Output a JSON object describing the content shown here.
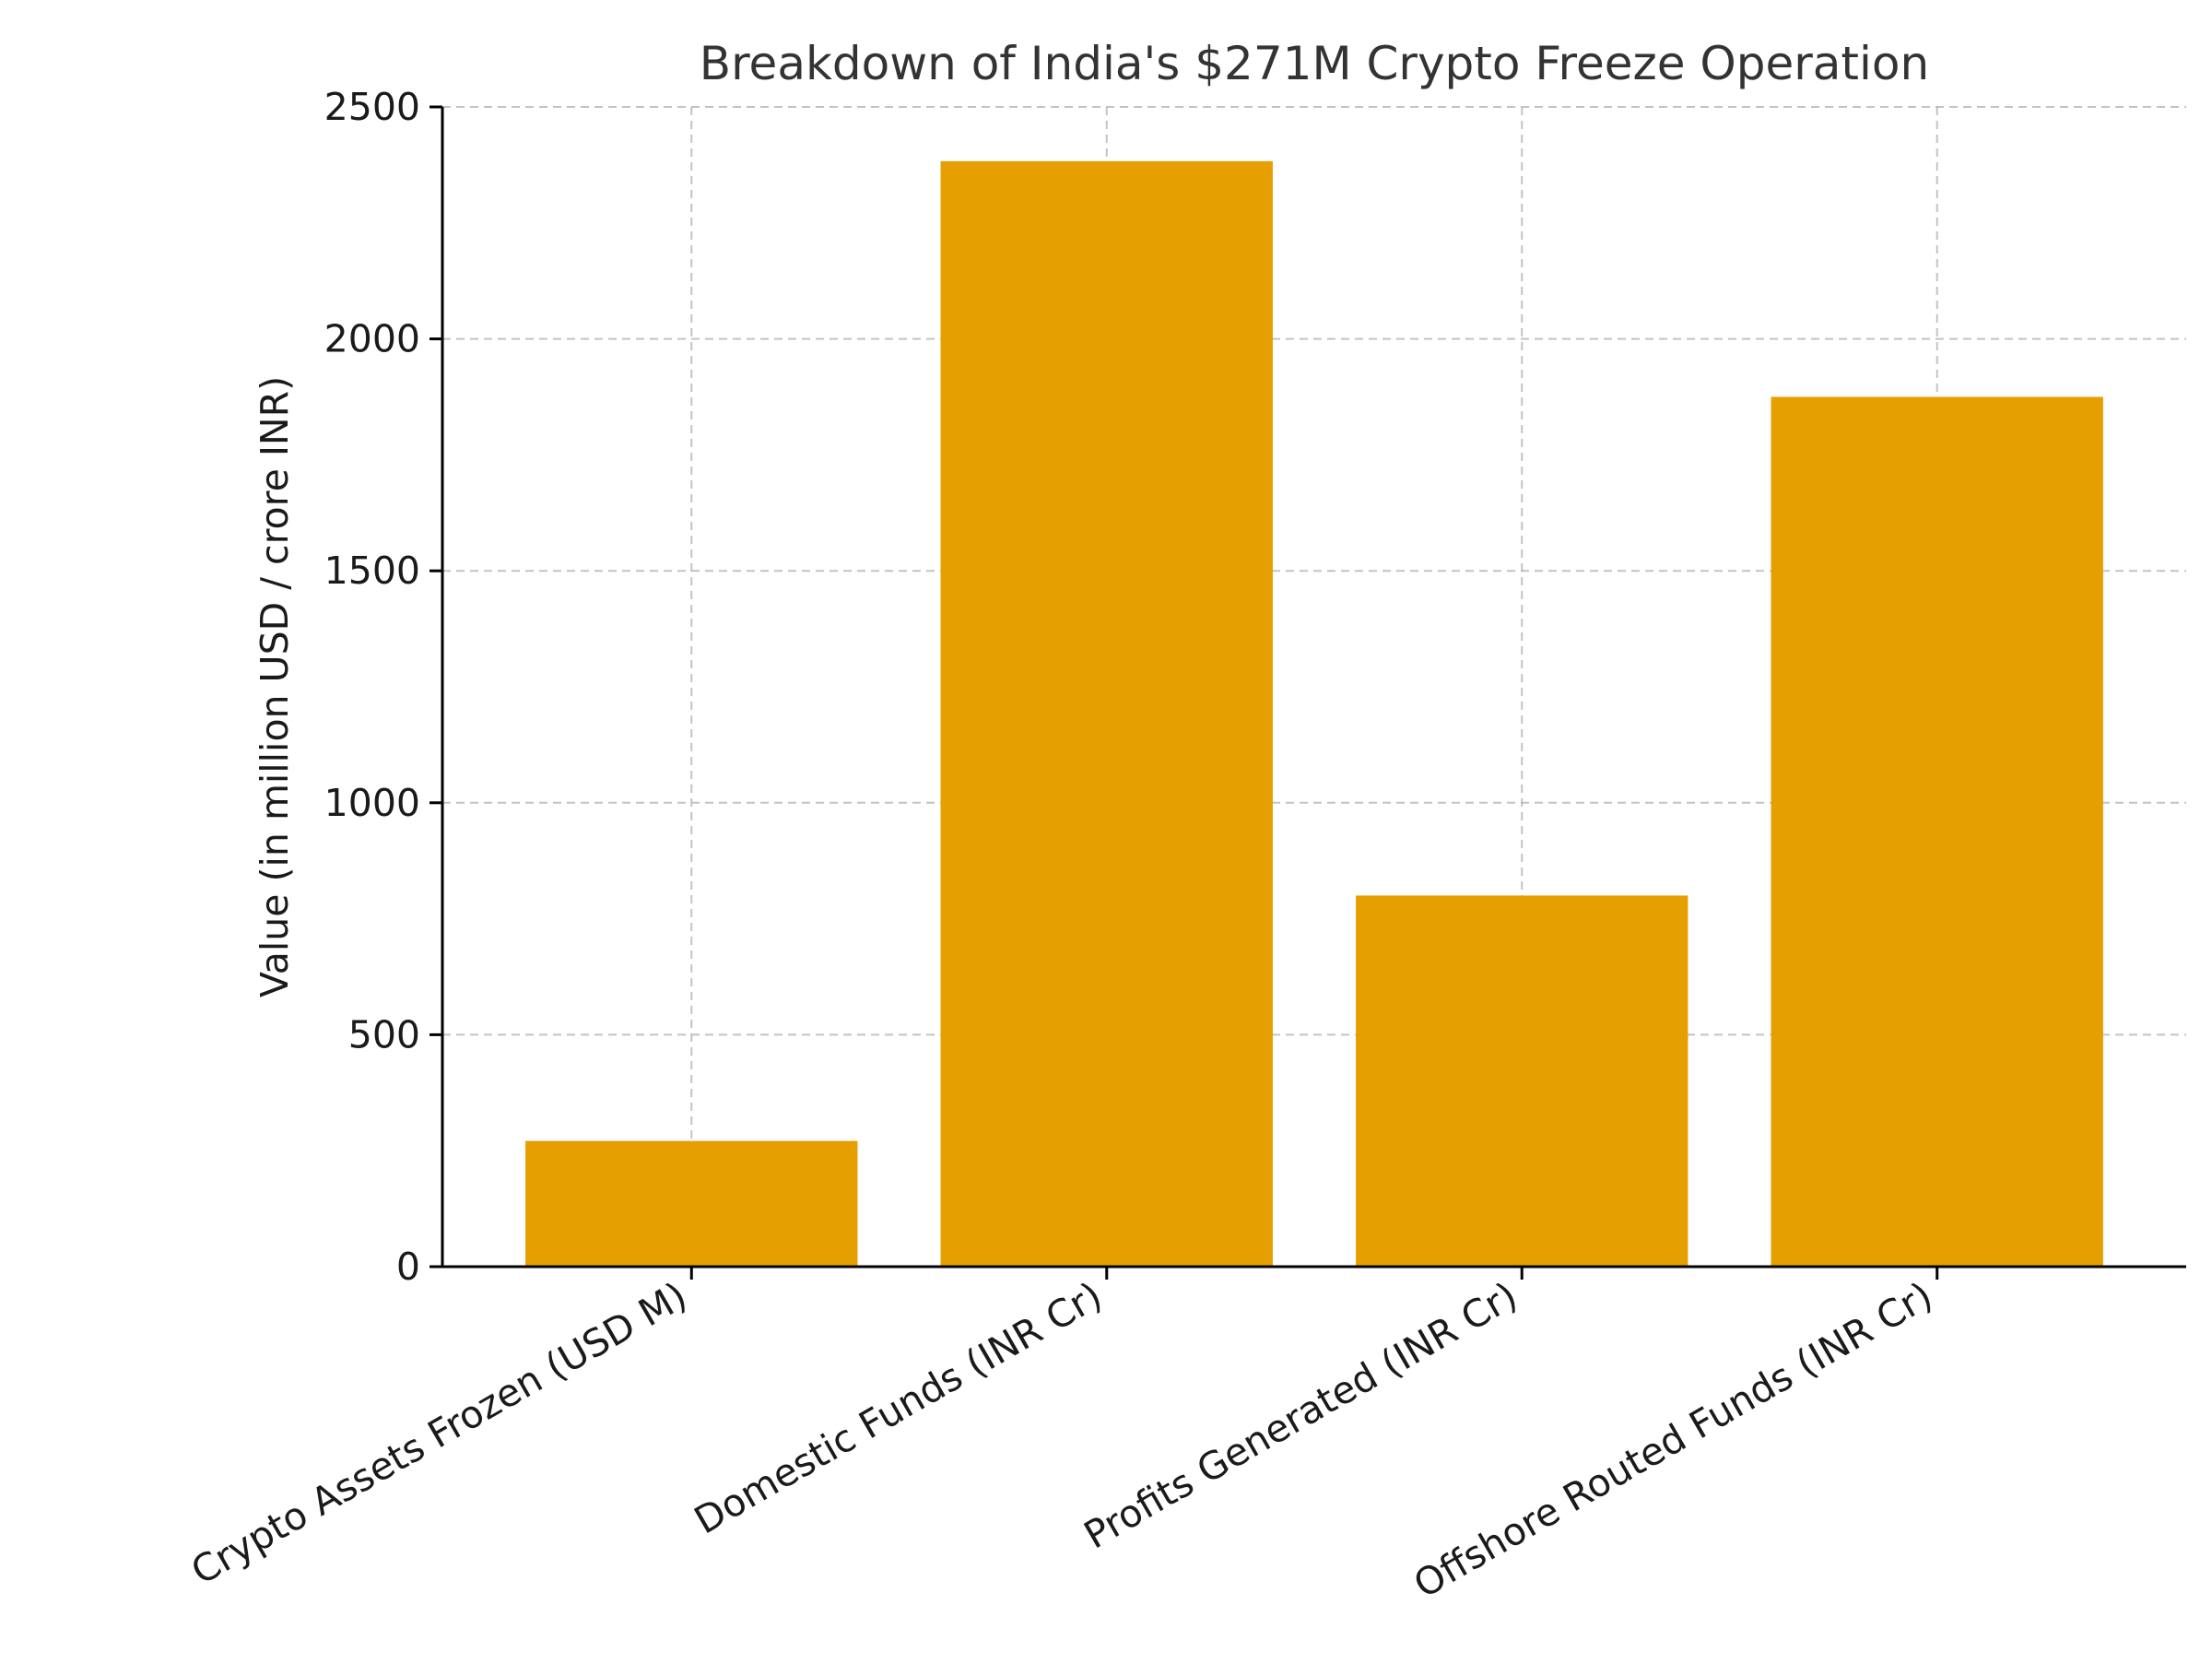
{
  "chart_data": {
    "type": "bar",
    "title": "Breakdown of India's $271M Crypto Freeze Operation",
    "xlabel": "",
    "ylabel": "Value (in million USD / crore INR)",
    "categories": [
      "Crypto Assets Frozen (USD M)",
      "Domestic Funds (INR Cr)",
      "Profits Generated (INR Cr)",
      "Offshore Routed Funds (INR Cr)"
    ],
    "values": [
      271,
      2383,
      800,
      1875
    ],
    "ylim": [
      0,
      2500
    ],
    "yticks": [
      0,
      500,
      1000,
      1500,
      2000,
      2500
    ],
    "ytick_labels": [
      "0",
      "500",
      "1000",
      "1500",
      "2000",
      "2500"
    ],
    "grid": true,
    "legend": "none",
    "bar_color": "#E69F00"
  }
}
